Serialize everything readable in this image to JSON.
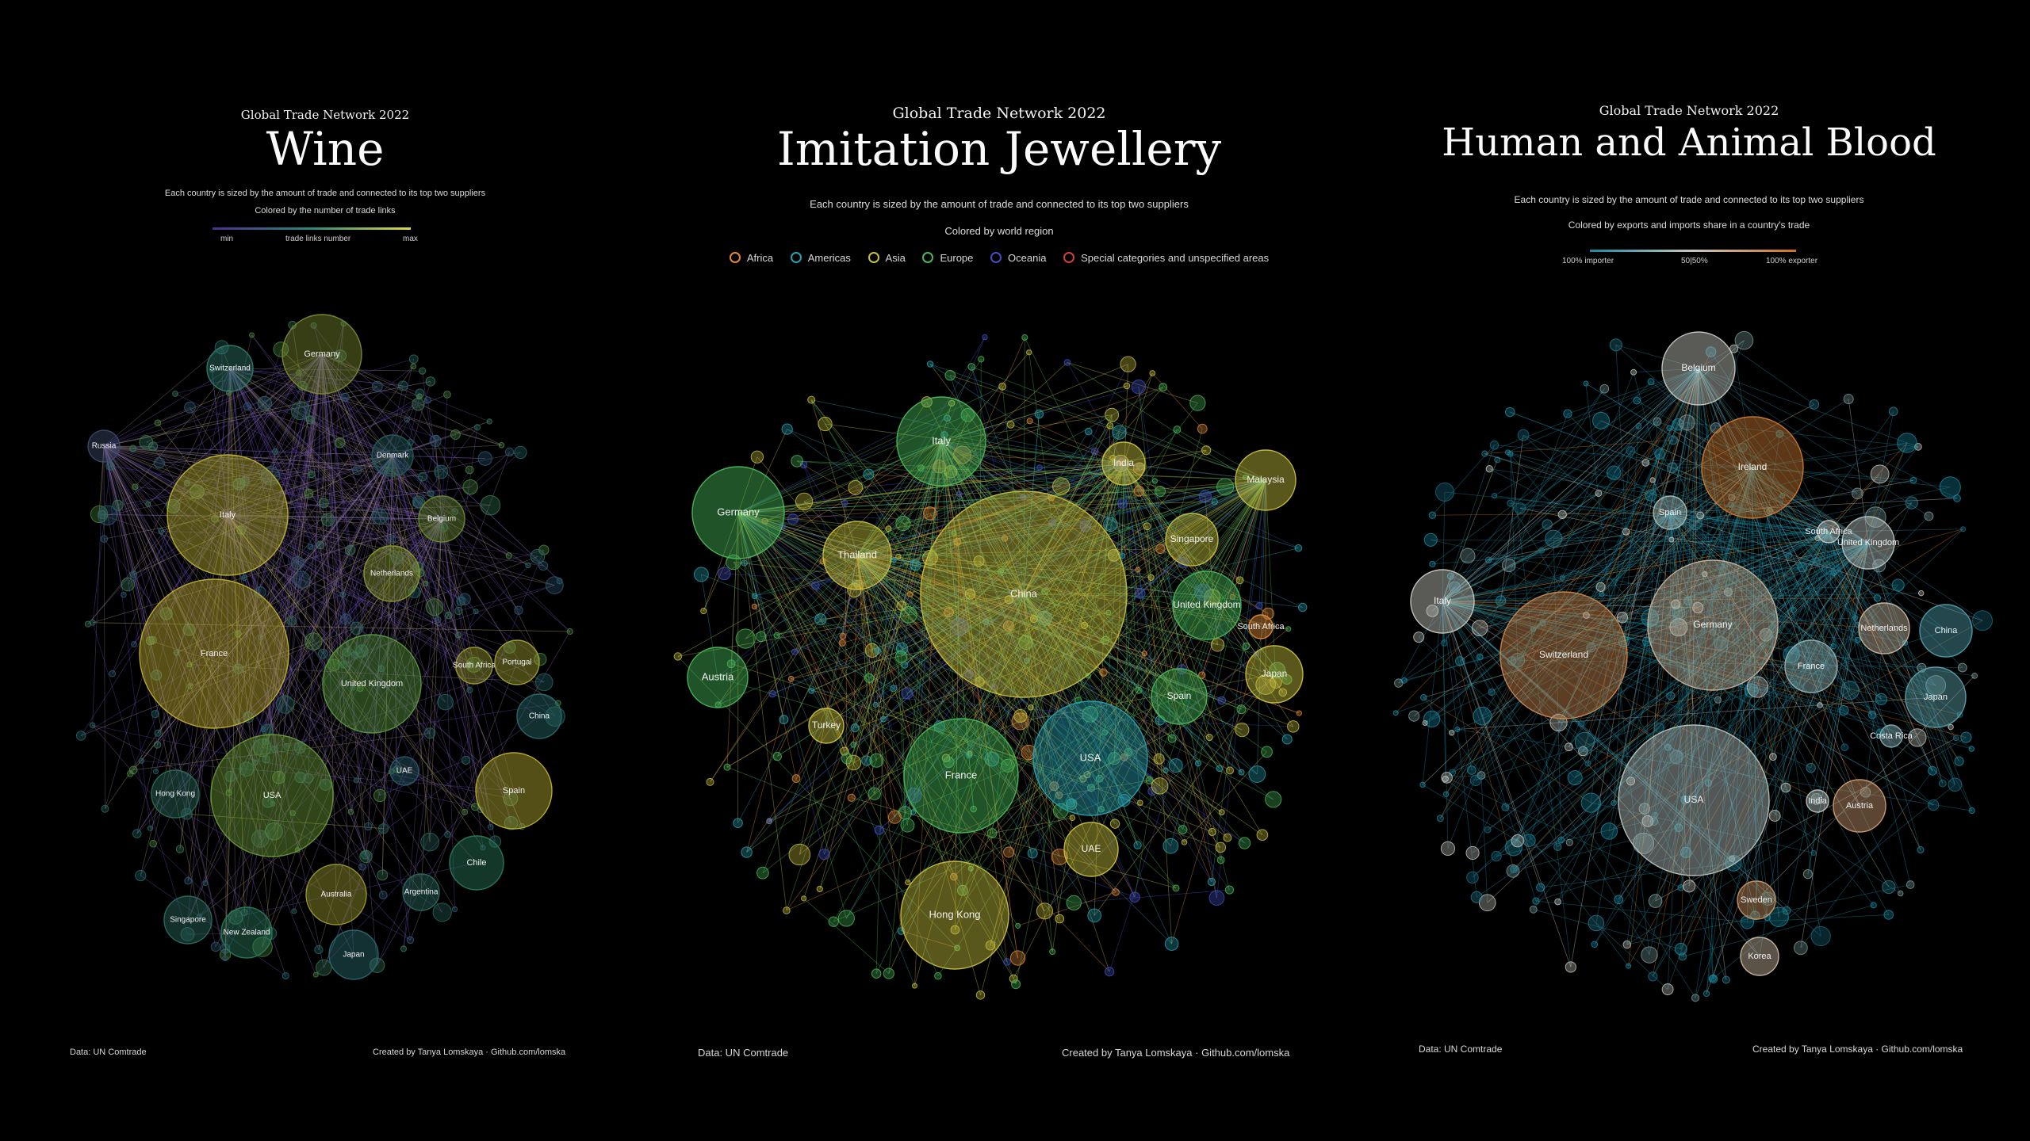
{
  "panels": [
    {
      "header": "Global Trade Network 2022",
      "title": "Wine",
      "subtitle_1": "Each country is sized by the amount of trade and connected to its top two suppliers",
      "subtitle_2": "Colored by the number of trade links",
      "scale": {
        "min": "min",
        "mid": "trade links number",
        "max": "max"
      },
      "footer_left": "Data: UN Comtrade",
      "footer_right": "Created by Tanya Lomskaya · Github.com/lomska",
      "colors": {
        "line_low": "#5a3fb0",
        "line_high": "#d8d040"
      },
      "nodes": [
        {
          "label": "Germany",
          "color": "#7a8a30"
        },
        {
          "label": "Switzerland",
          "color": "#2f7a6a"
        },
        {
          "label": "Russia",
          "color": "#3a4a6a"
        },
        {
          "label": "Denmark",
          "color": "#245c5c"
        },
        {
          "label": "Italy",
          "color": "#b8b030"
        },
        {
          "label": "Belgium",
          "color": "#6a8a30"
        },
        {
          "label": "Netherlands",
          "color": "#8a9a30"
        },
        {
          "label": "France",
          "color": "#c0b030"
        },
        {
          "label": "United Kingdom",
          "color": "#5a9a40"
        },
        {
          "label": "South Africa",
          "color": "#9a9a30"
        },
        {
          "label": "Portugal",
          "color": "#a0a030"
        },
        {
          "label": "China",
          "color": "#2a6a6a"
        },
        {
          "label": "USA",
          "color": "#6a9a35"
        },
        {
          "label": "Hong Kong",
          "color": "#2a6a5a"
        },
        {
          "label": "UAE",
          "color": "#2a5a6a"
        },
        {
          "label": "Spain",
          "color": "#b8b030"
        },
        {
          "label": "Chile",
          "color": "#2a7a5a"
        },
        {
          "label": "Australia",
          "color": "#9a9a30"
        },
        {
          "label": "Argentina",
          "color": "#2a6a60"
        },
        {
          "label": "Singapore",
          "color": "#2a6a60"
        },
        {
          "label": "New Zealand",
          "color": "#2a7a5a"
        },
        {
          "label": "Japan",
          "color": "#2a6a70"
        }
      ]
    },
    {
      "header": "Global Trade Network 2022",
      "title": "Imitation Jewellery",
      "subtitle_1": "Each country is sized by the amount of trade and connected to its top two suppliers",
      "subtitle_2": "Colored by world region",
      "legend": [
        {
          "label": "Africa",
          "color": "#e08a3a"
        },
        {
          "label": "Americas",
          "color": "#2aa0b0"
        },
        {
          "label": "Asia",
          "color": "#c8c040"
        },
        {
          "label": "Europe",
          "color": "#4ab85a"
        },
        {
          "label": "Oceania",
          "color": "#4050c0"
        },
        {
          "label": "Special categories and unspecified areas",
          "color": "#d04040"
        }
      ],
      "footer_left": "Data: UN Comtrade",
      "footer_right": "Created by Tanya Lomskaya · Github.com/lomska",
      "nodes": [
        {
          "label": "Italy",
          "region": "Europe"
        },
        {
          "label": "India",
          "region": "Asia"
        },
        {
          "label": "Malaysia",
          "region": "Asia"
        },
        {
          "label": "Germany",
          "region": "Europe"
        },
        {
          "label": "Thailand",
          "region": "Asia"
        },
        {
          "label": "China",
          "region": "Asia"
        },
        {
          "label": "Singapore",
          "region": "Asia"
        },
        {
          "label": "United Kingdom",
          "region": "Europe"
        },
        {
          "label": "South Africa",
          "region": "Africa"
        },
        {
          "label": "Austria",
          "region": "Europe"
        },
        {
          "label": "Japan",
          "region": "Asia"
        },
        {
          "label": "Spain",
          "region": "Europe"
        },
        {
          "label": "Turkey",
          "region": "Asia"
        },
        {
          "label": "France",
          "region": "Europe"
        },
        {
          "label": "USA",
          "region": "Americas"
        },
        {
          "label": "UAE",
          "region": "Asia"
        },
        {
          "label": "Hong Kong",
          "region": "Asia"
        }
      ]
    },
    {
      "header": "Global Trade Network 2022",
      "title": "Human and Animal Blood",
      "subtitle_1": "Each country is sized by the amount of trade and connected to its top two suppliers",
      "subtitle_2": "Colored by exports and imports share in a country's trade",
      "scale": {
        "min": "100% importer",
        "mid": "50|50%",
        "max": "100% exporter"
      },
      "footer_left": "Data: UN Comtrade",
      "footer_right": "Created by Tanya Lomskaya · Github.com/lomska",
      "colors": {
        "importer": "#1a8aa0",
        "balanced": "#c8c8c0",
        "exporter": "#d07020"
      },
      "nodes": [
        {
          "label": "Belgium",
          "share": 0.5
        },
        {
          "label": "Ireland",
          "share": 0.95
        },
        {
          "label": "Spain",
          "share": 0.4
        },
        {
          "label": "South Africa",
          "share": 0.5
        },
        {
          "label": "United Kingdom",
          "share": 0.45
        },
        {
          "label": "Italy",
          "share": 0.5
        },
        {
          "label": "Germany",
          "share": 0.62
        },
        {
          "label": "Switzerland",
          "share": 0.85
        },
        {
          "label": "Netherlands",
          "share": 0.6
        },
        {
          "label": "China",
          "share": 0.15
        },
        {
          "label": "France",
          "share": 0.35
        },
        {
          "label": "Japan",
          "share": 0.2
        },
        {
          "label": "Costa Rica",
          "share": 0.3
        },
        {
          "label": "USA",
          "share": 0.45
        },
        {
          "label": "India",
          "share": 0.45
        },
        {
          "label": "Austria",
          "share": 0.75
        },
        {
          "label": "Sweden",
          "share": 0.8
        },
        {
          "label": "Korea",
          "share": 0.6
        }
      ]
    }
  ]
}
